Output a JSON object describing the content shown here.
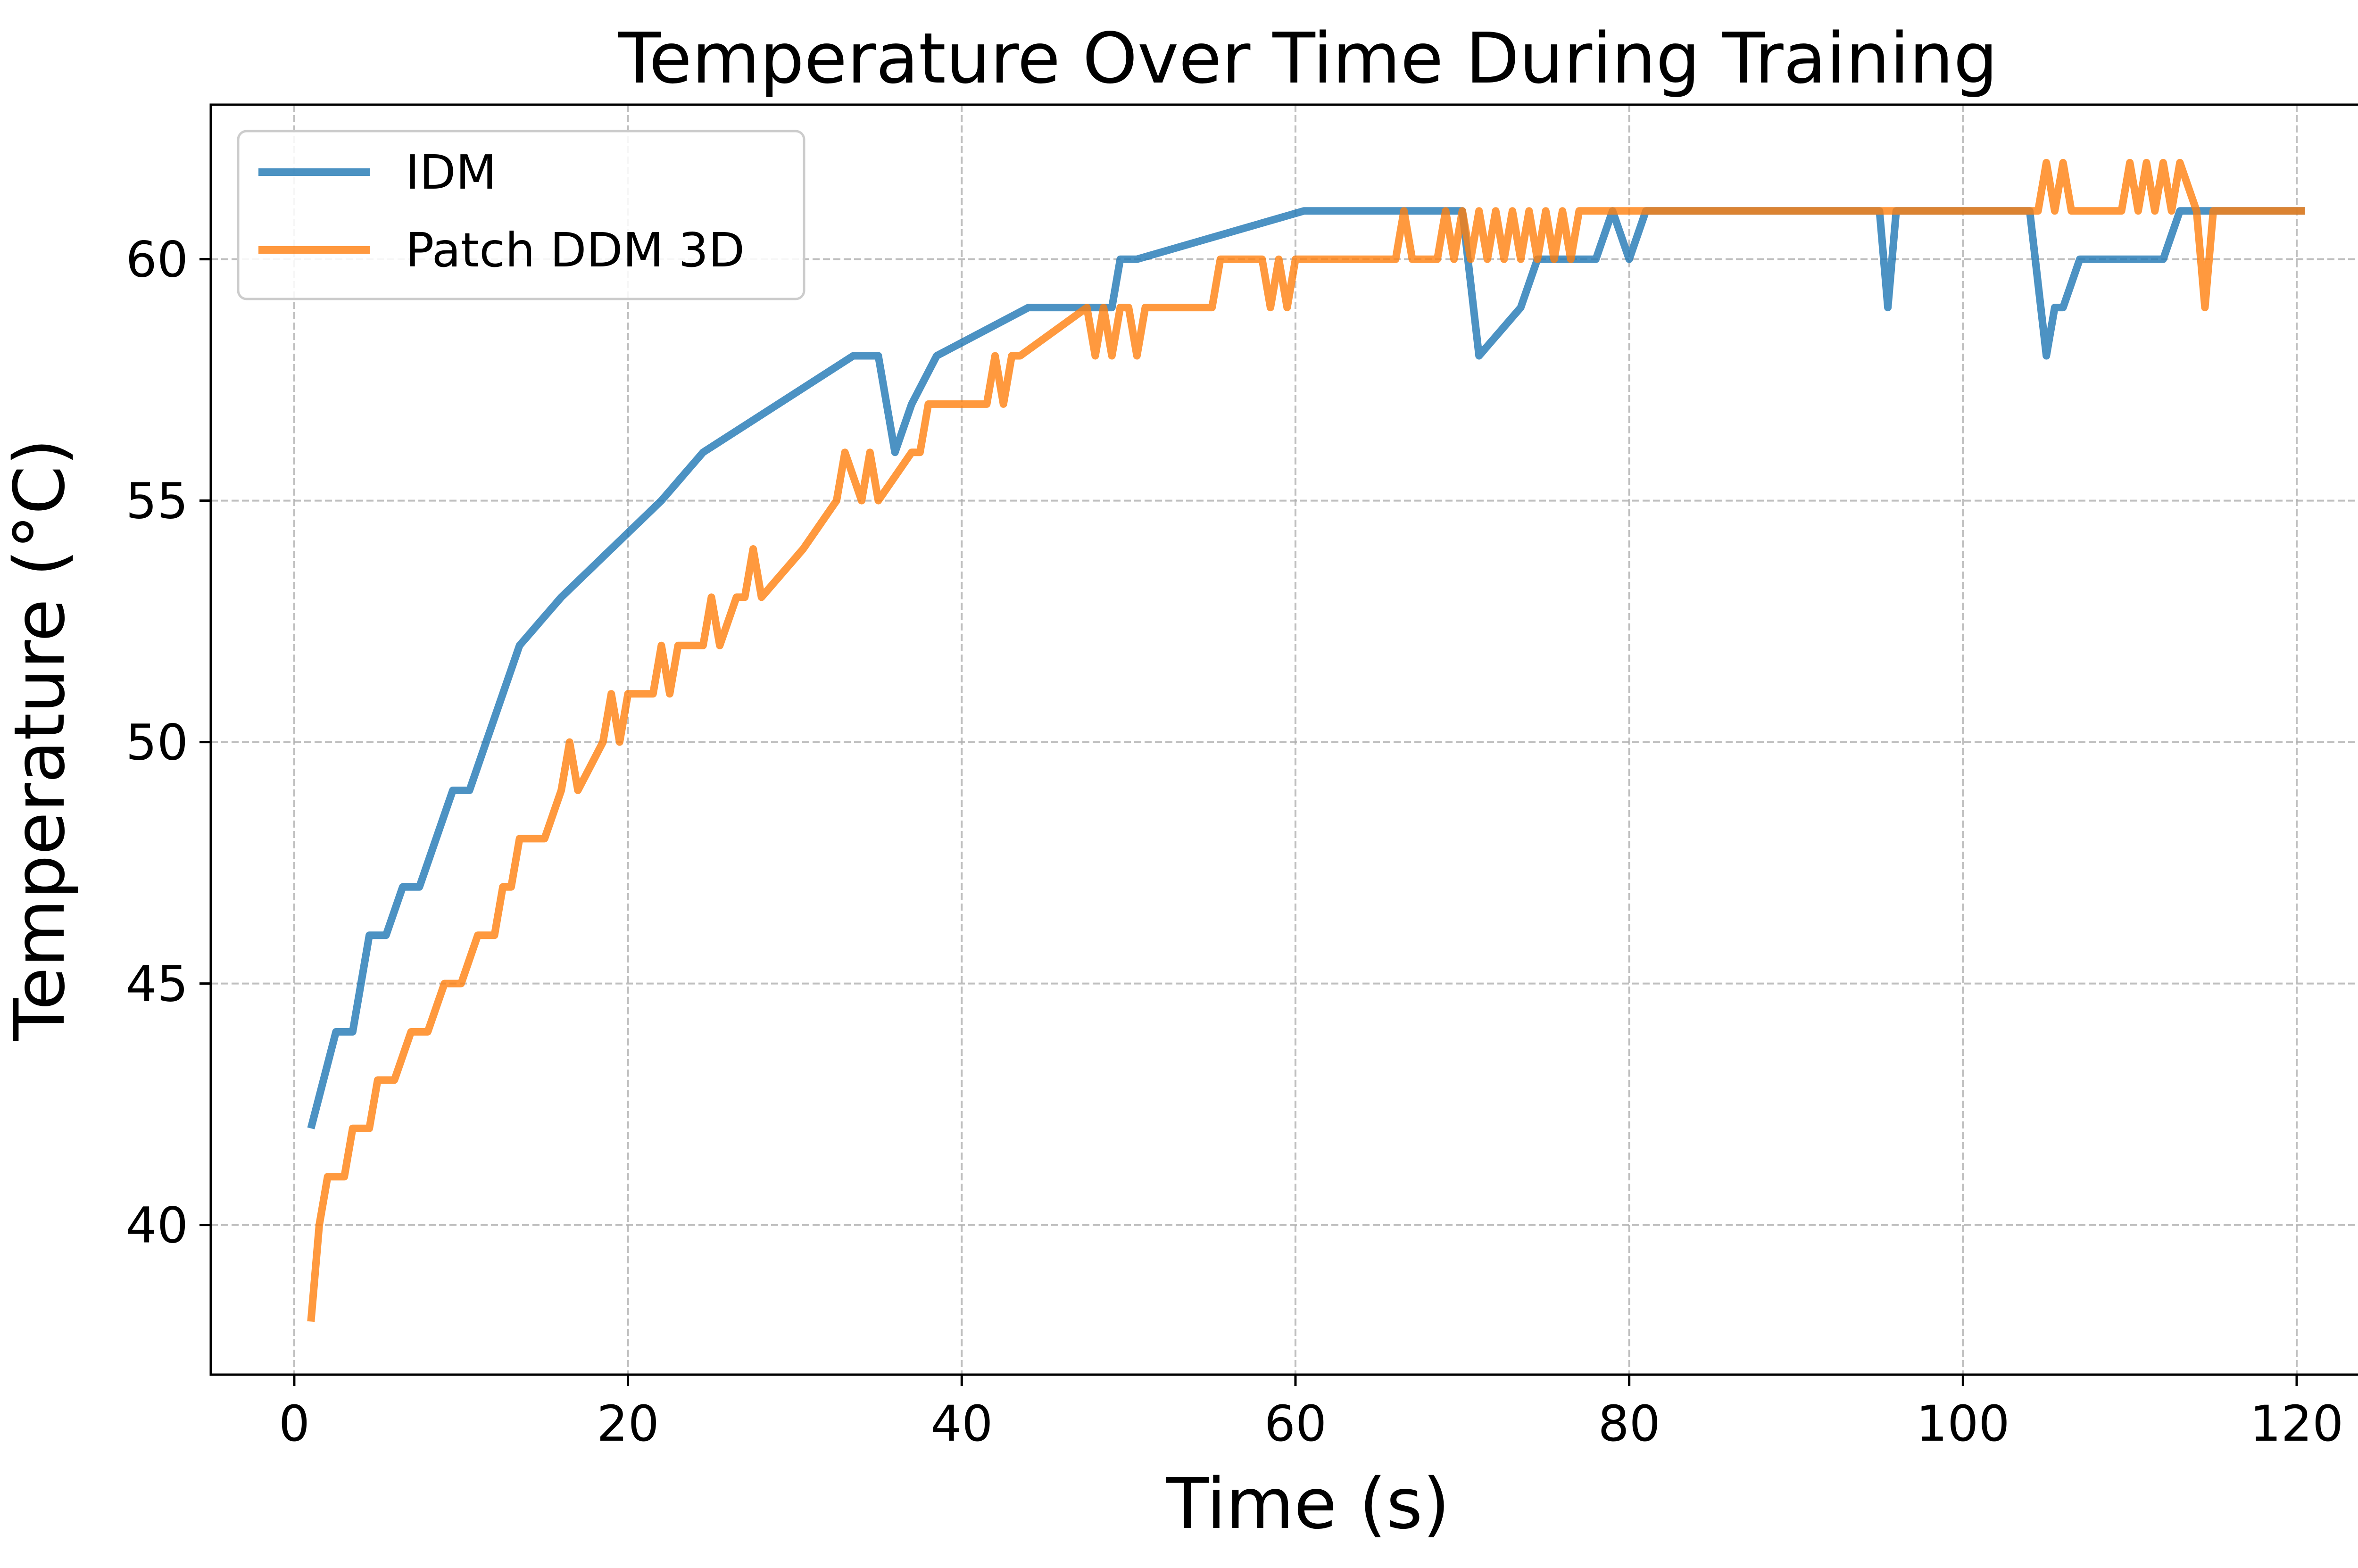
{
  "chart_data": {
    "type": "line",
    "title": "Temperature Over Time During Training",
    "xlabel": "Time (s)",
    "ylabel": "Temperature (°C)",
    "xlim": [
      -5,
      126.5
    ],
    "ylim": [
      36.9,
      63.2
    ],
    "xticks": [
      0,
      20,
      40,
      60,
      80,
      100,
      120
    ],
    "yticks": [
      40,
      45,
      50,
      55,
      60
    ],
    "grid": true,
    "legend_position": "top-left",
    "series": [
      {
        "name": "IDM",
        "color": "#1f77b4",
        "x": [
          1,
          2.5,
          3.5,
          4.5,
          5.5,
          6.5,
          7.5,
          8.5,
          9.5,
          10.5,
          11.5,
          12.5,
          13.5,
          16,
          19,
          22,
          24.5,
          29,
          33.5,
          35,
          36,
          37,
          38.5,
          44,
          49,
          49.5,
          50.5,
          60.5,
          70,
          71,
          73.5,
          74.5,
          78,
          79,
          80,
          81,
          95,
          95.5,
          96,
          104,
          105,
          105.5,
          106,
          107,
          112,
          113,
          120.5
        ],
        "y": [
          42,
          44,
          44,
          46,
          46,
          47,
          47,
          48,
          49,
          49,
          50,
          51,
          52,
          53,
          54,
          55,
          56,
          57,
          58,
          58,
          56,
          57,
          58,
          59,
          59,
          60,
          60,
          61,
          61,
          58,
          59,
          60,
          60,
          61,
          60,
          61,
          61,
          59,
          61,
          61,
          58,
          59,
          59,
          60,
          60,
          61,
          61
        ]
      },
      {
        "name": "Patch DDM 3D",
        "color": "#ff7f0e",
        "x": [
          1,
          1.5,
          2,
          3,
          3.5,
          4.5,
          5,
          6,
          7,
          8,
          9,
          10,
          11,
          12,
          12.5,
          13,
          13.5,
          15,
          16,
          16.5,
          17,
          18.5,
          19,
          19.5,
          20,
          21.5,
          22,
          22.5,
          23,
          24.5,
          25,
          25.5,
          26.5,
          27,
          27.5,
          28,
          30.5,
          32.5,
          33,
          34,
          34.5,
          35,
          37,
          37.5,
          38,
          41.5,
          42,
          42.5,
          43,
          43.5,
          47.5,
          48,
          48.5,
          49,
          49.5,
          50,
          50.5,
          51,
          55,
          55.5,
          58,
          58.5,
          59,
          59.5,
          60,
          60.5,
          66,
          66.5,
          67,
          68.5,
          69,
          69.5,
          70,
          70.5,
          71,
          71.5,
          72,
          72.5,
          73,
          73.5,
          74,
          74.5,
          75,
          75.5,
          76,
          76.5,
          77,
          104.5,
          105,
          105.5,
          106,
          106.5,
          109.5,
          110,
          110.5,
          111,
          111.5,
          112,
          112.5,
          113,
          114,
          114.5,
          115,
          120.5
        ],
        "y": [
          38,
          40,
          41,
          41,
          42,
          42,
          43,
          43,
          44,
          44,
          45,
          45,
          46,
          46,
          47,
          47,
          48,
          48,
          49,
          50,
          49,
          50,
          51,
          50,
          51,
          51,
          52,
          51,
          52,
          52,
          53,
          52,
          53,
          53,
          54,
          53,
          54,
          55,
          56,
          55,
          56,
          55,
          56,
          56,
          57,
          57,
          58,
          57,
          58,
          58,
          59,
          58,
          59,
          58,
          59,
          59,
          58,
          59,
          59,
          60,
          60,
          59,
          60,
          59,
          60,
          60,
          60,
          61,
          60,
          60,
          61,
          60,
          61,
          60,
          61,
          60,
          61,
          60,
          61,
          60,
          61,
          60,
          61,
          60,
          61,
          60,
          61,
          61,
          62,
          61,
          62,
          61,
          61,
          62,
          61,
          62,
          61,
          62,
          61,
          62,
          61,
          59,
          61,
          61
        ]
      }
    ]
  }
}
